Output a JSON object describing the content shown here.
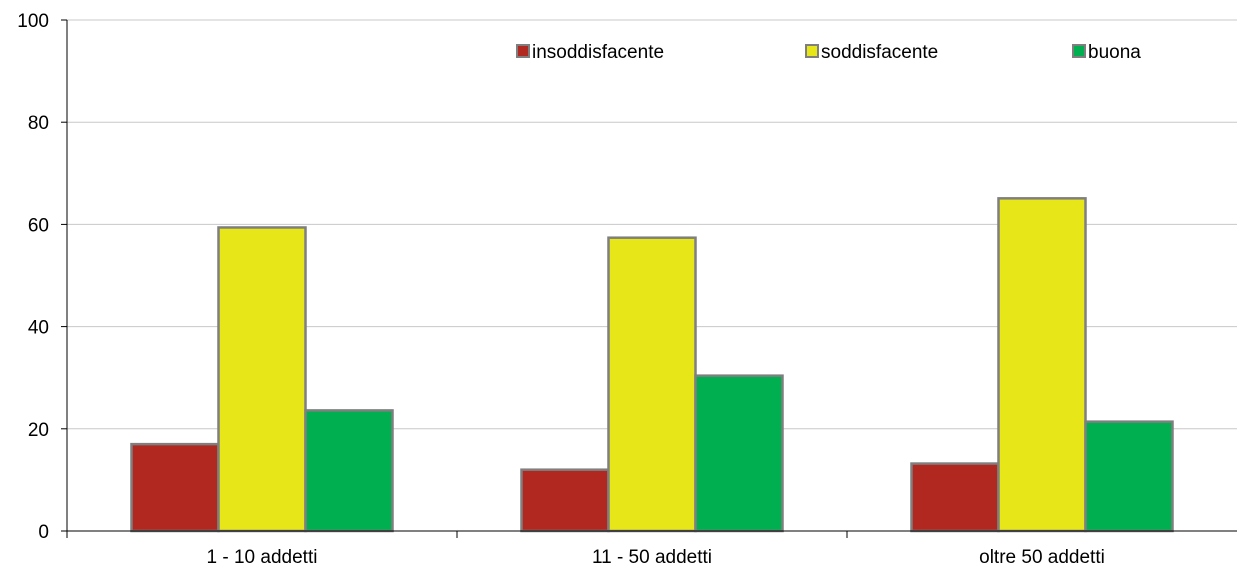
{
  "chart_data": {
    "type": "bar",
    "title": "",
    "xlabel": "",
    "ylabel": "",
    "categories": [
      "1 - 10 addetti",
      "11 - 50 addetti",
      "oltre 50 addetti"
    ],
    "series": [
      {
        "name": "insoddisfacente",
        "color": "#b0281f",
        "values": [
          17,
          12,
          13.2
        ]
      },
      {
        "name": "soddisfacente",
        "color": "#e6e619",
        "values": [
          59.4,
          57.4,
          65.1
        ]
      },
      {
        "name": "buona",
        "color": "#00b050",
        "values": [
          23.6,
          30.4,
          21.4
        ]
      }
    ],
    "ylim": [
      0,
      100
    ],
    "yticks": [
      0,
      20,
      40,
      60,
      80,
      100
    ],
    "grid": true,
    "legend_position": "top-right"
  }
}
